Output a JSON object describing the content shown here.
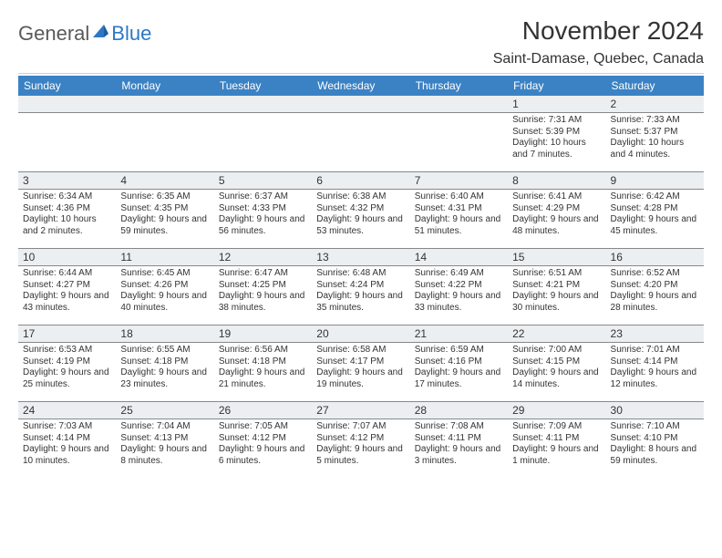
{
  "logo": {
    "text1": "General",
    "text2": "Blue"
  },
  "title": "November 2024",
  "location": "Saint-Damase, Quebec, Canada",
  "header_bg": "#3b82c4",
  "daynum_bg": "#eceff2",
  "weekdays": [
    "Sunday",
    "Monday",
    "Tuesday",
    "Wednesday",
    "Thursday",
    "Friday",
    "Saturday"
  ],
  "weeks": [
    [
      null,
      null,
      null,
      null,
      null,
      {
        "n": "1",
        "sr": "Sunrise: 7:31 AM",
        "ss": "Sunset: 5:39 PM",
        "dl": "Daylight: 10 hours and 7 minutes."
      },
      {
        "n": "2",
        "sr": "Sunrise: 7:33 AM",
        "ss": "Sunset: 5:37 PM",
        "dl": "Daylight: 10 hours and 4 minutes."
      }
    ],
    [
      {
        "n": "3",
        "sr": "Sunrise: 6:34 AM",
        "ss": "Sunset: 4:36 PM",
        "dl": "Daylight: 10 hours and 2 minutes."
      },
      {
        "n": "4",
        "sr": "Sunrise: 6:35 AM",
        "ss": "Sunset: 4:35 PM",
        "dl": "Daylight: 9 hours and 59 minutes."
      },
      {
        "n": "5",
        "sr": "Sunrise: 6:37 AM",
        "ss": "Sunset: 4:33 PM",
        "dl": "Daylight: 9 hours and 56 minutes."
      },
      {
        "n": "6",
        "sr": "Sunrise: 6:38 AM",
        "ss": "Sunset: 4:32 PM",
        "dl": "Daylight: 9 hours and 53 minutes."
      },
      {
        "n": "7",
        "sr": "Sunrise: 6:40 AM",
        "ss": "Sunset: 4:31 PM",
        "dl": "Daylight: 9 hours and 51 minutes."
      },
      {
        "n": "8",
        "sr": "Sunrise: 6:41 AM",
        "ss": "Sunset: 4:29 PM",
        "dl": "Daylight: 9 hours and 48 minutes."
      },
      {
        "n": "9",
        "sr": "Sunrise: 6:42 AM",
        "ss": "Sunset: 4:28 PM",
        "dl": "Daylight: 9 hours and 45 minutes."
      }
    ],
    [
      {
        "n": "10",
        "sr": "Sunrise: 6:44 AM",
        "ss": "Sunset: 4:27 PM",
        "dl": "Daylight: 9 hours and 43 minutes."
      },
      {
        "n": "11",
        "sr": "Sunrise: 6:45 AM",
        "ss": "Sunset: 4:26 PM",
        "dl": "Daylight: 9 hours and 40 minutes."
      },
      {
        "n": "12",
        "sr": "Sunrise: 6:47 AM",
        "ss": "Sunset: 4:25 PM",
        "dl": "Daylight: 9 hours and 38 minutes."
      },
      {
        "n": "13",
        "sr": "Sunrise: 6:48 AM",
        "ss": "Sunset: 4:24 PM",
        "dl": "Daylight: 9 hours and 35 minutes."
      },
      {
        "n": "14",
        "sr": "Sunrise: 6:49 AM",
        "ss": "Sunset: 4:22 PM",
        "dl": "Daylight: 9 hours and 33 minutes."
      },
      {
        "n": "15",
        "sr": "Sunrise: 6:51 AM",
        "ss": "Sunset: 4:21 PM",
        "dl": "Daylight: 9 hours and 30 minutes."
      },
      {
        "n": "16",
        "sr": "Sunrise: 6:52 AM",
        "ss": "Sunset: 4:20 PM",
        "dl": "Daylight: 9 hours and 28 minutes."
      }
    ],
    [
      {
        "n": "17",
        "sr": "Sunrise: 6:53 AM",
        "ss": "Sunset: 4:19 PM",
        "dl": "Daylight: 9 hours and 25 minutes."
      },
      {
        "n": "18",
        "sr": "Sunrise: 6:55 AM",
        "ss": "Sunset: 4:18 PM",
        "dl": "Daylight: 9 hours and 23 minutes."
      },
      {
        "n": "19",
        "sr": "Sunrise: 6:56 AM",
        "ss": "Sunset: 4:18 PM",
        "dl": "Daylight: 9 hours and 21 minutes."
      },
      {
        "n": "20",
        "sr": "Sunrise: 6:58 AM",
        "ss": "Sunset: 4:17 PM",
        "dl": "Daylight: 9 hours and 19 minutes."
      },
      {
        "n": "21",
        "sr": "Sunrise: 6:59 AM",
        "ss": "Sunset: 4:16 PM",
        "dl": "Daylight: 9 hours and 17 minutes."
      },
      {
        "n": "22",
        "sr": "Sunrise: 7:00 AM",
        "ss": "Sunset: 4:15 PM",
        "dl": "Daylight: 9 hours and 14 minutes."
      },
      {
        "n": "23",
        "sr": "Sunrise: 7:01 AM",
        "ss": "Sunset: 4:14 PM",
        "dl": "Daylight: 9 hours and 12 minutes."
      }
    ],
    [
      {
        "n": "24",
        "sr": "Sunrise: 7:03 AM",
        "ss": "Sunset: 4:14 PM",
        "dl": "Daylight: 9 hours and 10 minutes."
      },
      {
        "n": "25",
        "sr": "Sunrise: 7:04 AM",
        "ss": "Sunset: 4:13 PM",
        "dl": "Daylight: 9 hours and 8 minutes."
      },
      {
        "n": "26",
        "sr": "Sunrise: 7:05 AM",
        "ss": "Sunset: 4:12 PM",
        "dl": "Daylight: 9 hours and 6 minutes."
      },
      {
        "n": "27",
        "sr": "Sunrise: 7:07 AM",
        "ss": "Sunset: 4:12 PM",
        "dl": "Daylight: 9 hours and 5 minutes."
      },
      {
        "n": "28",
        "sr": "Sunrise: 7:08 AM",
        "ss": "Sunset: 4:11 PM",
        "dl": "Daylight: 9 hours and 3 minutes."
      },
      {
        "n": "29",
        "sr": "Sunrise: 7:09 AM",
        "ss": "Sunset: 4:11 PM",
        "dl": "Daylight: 9 hours and 1 minute."
      },
      {
        "n": "30",
        "sr": "Sunrise: 7:10 AM",
        "ss": "Sunset: 4:10 PM",
        "dl": "Daylight: 8 hours and 59 minutes."
      }
    ]
  ]
}
